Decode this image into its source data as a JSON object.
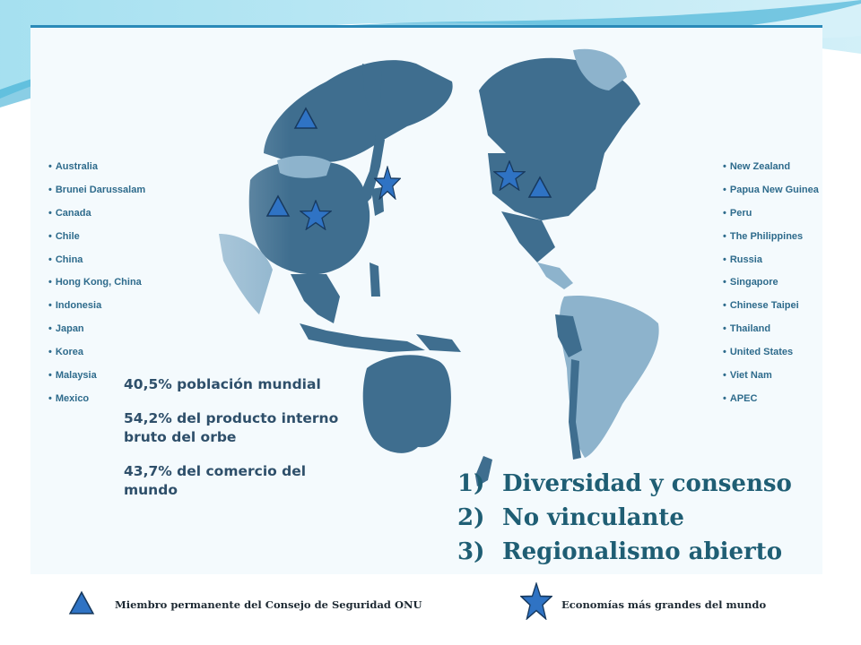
{
  "countries_left": [
    "Australia",
    "Brunei Darussalam",
    "Canada",
    "Chile",
    "China",
    "Hong Kong, China",
    "Indonesia",
    "Japan",
    "Korea",
    "Malaysia",
    "Mexico"
  ],
  "countries_right": [
    "New Zealand",
    "Papua New Guinea",
    "Peru",
    "The Philippines",
    "Russia",
    "Singapore",
    "Chinese Taipei",
    "Thailand",
    "United States",
    "Viet Nam",
    "APEC"
  ],
  "stats": [
    "40,5% población mundial",
    "54,2% del producto interno bruto del orbe",
    "43,7% del comercio del mundo"
  ],
  "principles": [
    {
      "num": "1)",
      "text": "Diversidad y consenso"
    },
    {
      "num": "2)",
      "text": "No vinculante"
    },
    {
      "num": "3)",
      "text": "Regionalismo abierto"
    }
  ],
  "legend": {
    "triangle": "Miembro permanente del Consejo de Seguridad ONU",
    "star": "Economías más grandes del mundo"
  },
  "markers": {
    "triangles": [
      "Russia",
      "China",
      "United States"
    ],
    "stars": [
      "China",
      "Japan",
      "United States"
    ]
  },
  "colors": {
    "member_fill": "#3f6e8f",
    "nonmember_fill": "#8db3cc",
    "text_blue": "#2e6b8c",
    "principles_teal": "#1f5e74",
    "marker_blue": "#2f73c4"
  }
}
